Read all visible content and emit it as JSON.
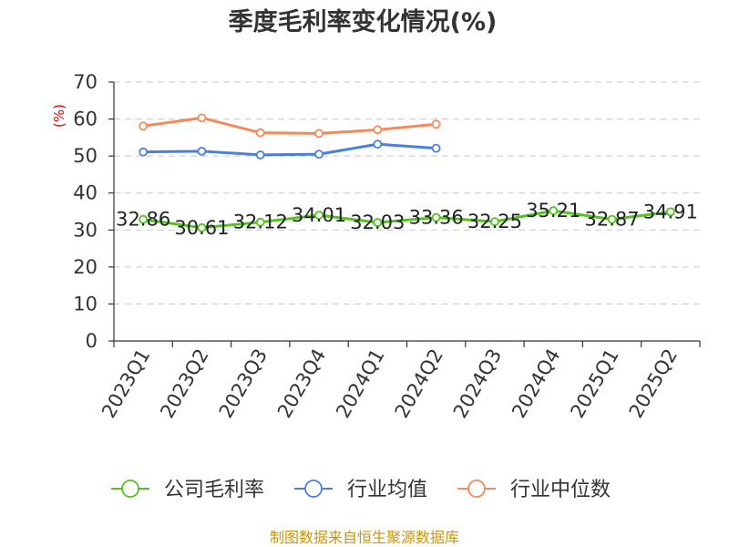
{
  "chart_data": {
    "type": "line",
    "title": "季度毛利率变化情况(%)",
    "ylabel": "(%)",
    "ylim": [
      0,
      70
    ],
    "yticks": [
      0,
      10,
      20,
      30,
      40,
      50,
      60,
      70
    ],
    "grid": true,
    "legend_position": "bottom",
    "categories": [
      "2023Q1",
      "2023Q2",
      "2023Q3",
      "2023Q4",
      "2024Q1",
      "2024Q2",
      "2024Q3",
      "2024Q4",
      "2025Q1",
      "2025Q2"
    ],
    "series": [
      {
        "name": "公司毛利率",
        "color": "#52c41a",
        "values": [
          32.86,
          30.61,
          32.12,
          34.01,
          32.03,
          33.36,
          32.25,
          35.21,
          32.87,
          34.91
        ],
        "show_labels": true
      },
      {
        "name": "行业均值",
        "color": "#4a7fe0",
        "values": [
          51.1,
          51.3,
          50.3,
          50.5,
          53.2,
          52.1,
          null,
          null,
          null,
          null
        ],
        "show_labels": false
      },
      {
        "name": "行业中位数",
        "color": "#f5895a",
        "values": [
          58.1,
          60.3,
          56.3,
          56.1,
          57.1,
          58.6,
          null,
          null,
          null,
          null
        ],
        "show_labels": false
      }
    ],
    "source": "制图数据来自恒生聚源数据库"
  }
}
